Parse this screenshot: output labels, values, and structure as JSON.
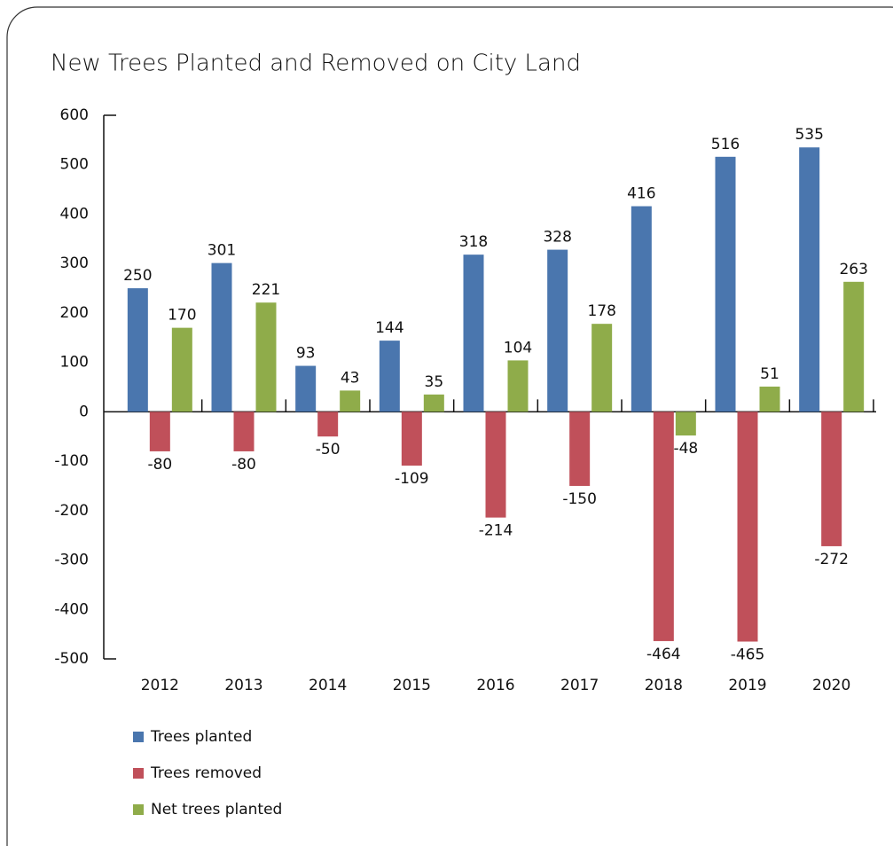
{
  "chart_data": {
    "type": "bar",
    "title": "New Trees Planted and Removed on City Land",
    "categories": [
      "2012",
      "2013",
      "2014",
      "2015",
      "2016",
      "2017",
      "2018",
      "2019",
      "2020"
    ],
    "series": [
      {
        "name": "Trees planted",
        "color": "#4a76ae",
        "values": [
          250,
          301,
          93,
          144,
          318,
          328,
          416,
          516,
          535
        ]
      },
      {
        "name": "Trees removed",
        "color": "#c0505a",
        "values": [
          -80,
          -80,
          -50,
          -109,
          -214,
          -150,
          -464,
          -465,
          -272
        ]
      },
      {
        "name": "Net trees planted",
        "color": "#8fac4a",
        "values": [
          170,
          221,
          43,
          35,
          104,
          178,
          -48,
          51,
          263
        ]
      }
    ],
    "ylim": [
      -500,
      600
    ],
    "yticks": [
      -500,
      -400,
      -300,
      -200,
      -100,
      0,
      100,
      200,
      300,
      400,
      500,
      600
    ],
    "grid": false,
    "legend": "bottom-left"
  }
}
